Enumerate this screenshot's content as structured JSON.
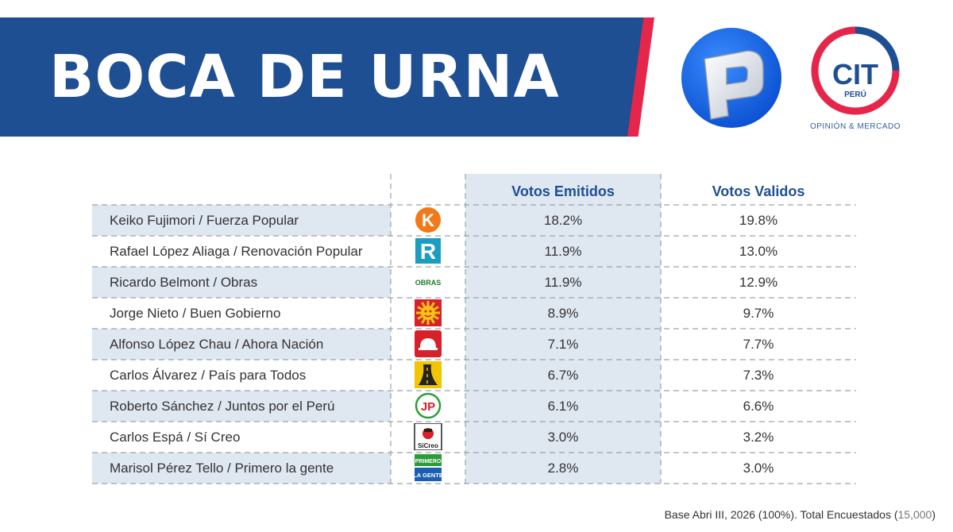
{
  "header": {
    "title": "BOCA DE URNA",
    "colors": {
      "banner": "#1f4f93",
      "accent": "#e5264a"
    }
  },
  "logos": {
    "broadcaster": {
      "icon": "panamericana-p-logo"
    },
    "pollster": {
      "name": "CIT",
      "country": "PERÚ",
      "tagline": "OPINIÓN & MERCADO",
      "icon": "cit-peru-logo"
    }
  },
  "chart_data": {
    "type": "table",
    "columns": [
      "Votos Emitidos",
      "Votos Validos"
    ],
    "rows": [
      {
        "label": "Keiko Fujimori / Fuerza Popular",
        "logo": "fuerza-popular-logo",
        "values": [
          "18.2%",
          "19.8%"
        ]
      },
      {
        "label": "Rafael López Aliaga / Renovación Popular",
        "logo": "renovacion-popular-logo",
        "values": [
          "11.9%",
          "13.0%"
        ]
      },
      {
        "label": "Ricardo Belmont / Obras",
        "logo": "obras-logo",
        "logo_text": "OBRAS",
        "values": [
          "11.9%",
          "12.9%"
        ]
      },
      {
        "label": "Jorge Nieto / Buen Gobierno",
        "logo": "buen-gobierno-logo",
        "values": [
          "8.9%",
          "9.7%"
        ]
      },
      {
        "label": "Alfonso López Chau / Ahora Nación",
        "logo": "ahora-nacion-logo",
        "values": [
          "7.1%",
          "7.7%"
        ]
      },
      {
        "label": "Carlos Álvarez / País para Todos",
        "logo": "pais-para-todos-logo",
        "values": [
          "6.7%",
          "7.3%"
        ]
      },
      {
        "label": "Roberto Sánchez / Juntos por el Perú",
        "logo": "juntos-por-el-peru-logo",
        "logo_text": "JP",
        "values": [
          "6.1%",
          "6.6%"
        ]
      },
      {
        "label": "Carlos Espá / Sí Creo",
        "logo": "si-creo-logo",
        "logo_text": "SíCreo",
        "values": [
          "3.0%",
          "3.2%"
        ]
      },
      {
        "label": "Marisol Pérez Tello / Primero la gente",
        "logo": "primero-la-gente-logo",
        "logo_text": "PRIMERO LA GENTE",
        "values": [
          "2.8%",
          "3.0%"
        ]
      }
    ]
  },
  "footnote": {
    "text": "Base Abri III, 2026  (100%). Total Encuestados (",
    "count": "15,000",
    "close": ")"
  }
}
